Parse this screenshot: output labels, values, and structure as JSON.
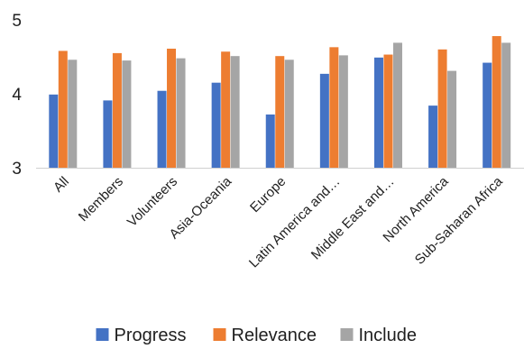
{
  "chart_data": {
    "type": "bar",
    "title": "",
    "xlabel": "",
    "ylabel": "",
    "ylim": [
      3,
      5
    ],
    "yticks": [
      "3",
      "4",
      "5"
    ],
    "grid": false,
    "legend_position": "bottom",
    "categories": [
      "All",
      "Members",
      "Volunteers",
      "Asia-Oceania",
      "Europe",
      "Latin America and…",
      "Middle East and…",
      "North America",
      "Sub-Saharan Africa"
    ],
    "series": [
      {
        "name": "Progress",
        "color": "#4472C4",
        "values": [
          3.99,
          3.91,
          4.04,
          4.15,
          3.72,
          4.27,
          4.49,
          3.84,
          4.42
        ]
      },
      {
        "name": "Relevance",
        "color": "#ED7D31",
        "values": [
          4.58,
          4.55,
          4.61,
          4.57,
          4.51,
          4.63,
          4.53,
          4.6,
          4.78
        ]
      },
      {
        "name": "Include",
        "color": "#A5A5A5",
        "values": [
          4.46,
          4.45,
          4.48,
          4.51,
          4.46,
          4.52,
          4.69,
          4.31,
          4.69
        ]
      }
    ]
  }
}
